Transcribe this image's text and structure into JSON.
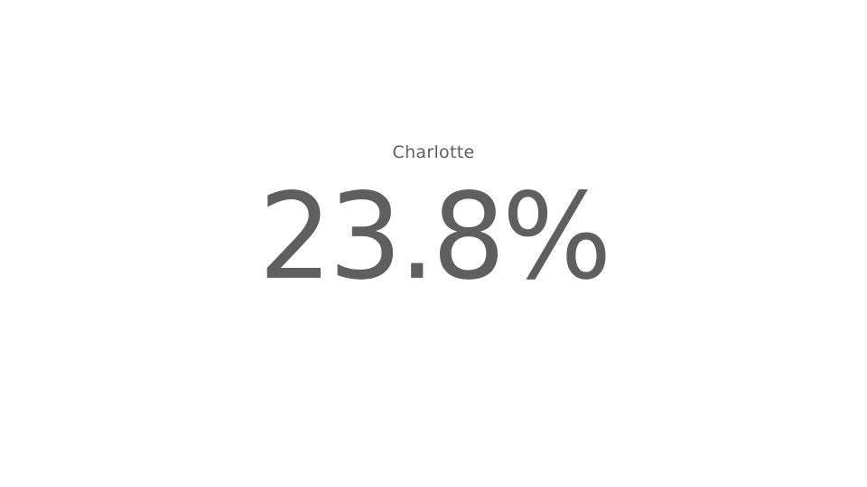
{
  "chart_data": {
    "type": "table",
    "label": "Charlotte",
    "value": 23.8,
    "unit": "%",
    "display_value": "23.8%"
  }
}
